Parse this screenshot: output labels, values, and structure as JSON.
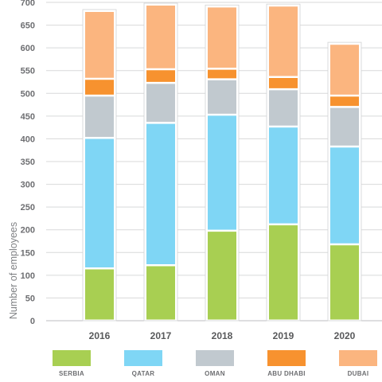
{
  "chart_data": {
    "type": "bar",
    "stacked": true,
    "title": "",
    "xlabel": "",
    "ylabel": "Number of employees",
    "ylim": [
      0,
      700
    ],
    "yticks": [
      0,
      50,
      100,
      150,
      200,
      250,
      300,
      350,
      400,
      450,
      500,
      550,
      600,
      650,
      700
    ],
    "grid": true,
    "legend_position": "bottom",
    "categories": [
      "2016",
      "2017",
      "2018",
      "2019",
      "2020"
    ],
    "series": [
      {
        "name": "SERBIA",
        "color": "#a8cf52",
        "values": [
          115,
          122,
          198,
          212,
          168
        ]
      },
      {
        "name": "QATAR",
        "color": "#7fd6f5",
        "values": [
          287,
          313,
          255,
          215,
          215
        ]
      },
      {
        "name": "OMAN",
        "color": "#c1c9cf",
        "values": [
          93,
          88,
          78,
          82,
          87
        ]
      },
      {
        "name": "ABU DHABI",
        "color": "#f7922f",
        "values": [
          37,
          30,
          23,
          27,
          25
        ]
      },
      {
        "name": "DUBAI",
        "color": "#fbb57f",
        "values": [
          147,
          140,
          135,
          155,
          112
        ]
      }
    ]
  }
}
